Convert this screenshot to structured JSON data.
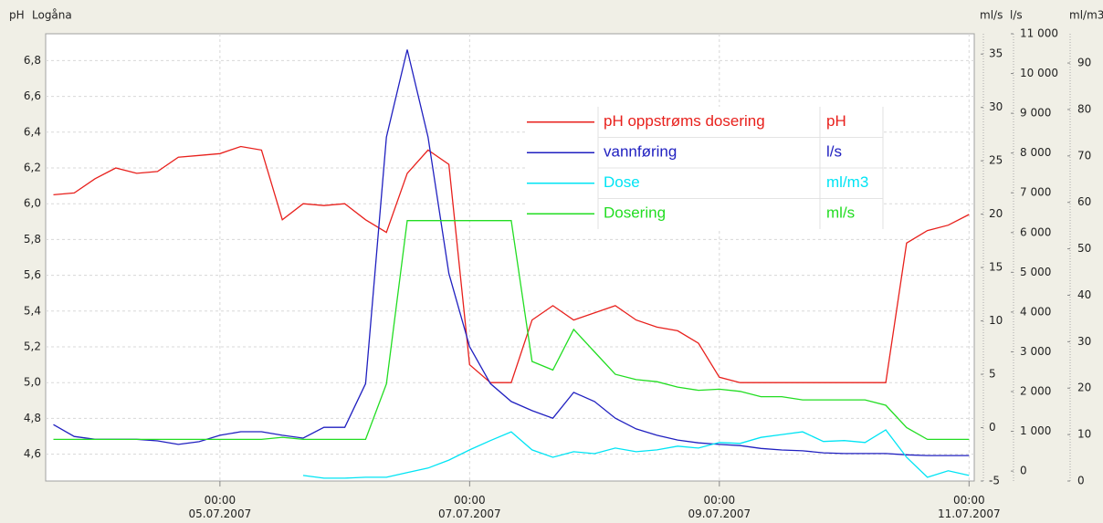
{
  "chart_data": {
    "type": "line",
    "title": "Logåna",
    "ylabel": "pH",
    "y2label": "ml/s",
    "y3label": "l/s",
    "y4label": "ml/m3",
    "grid": true,
    "x": [
      "03.07.2007 16:00",
      "03.07.2007 20:00",
      "04.07.2007 00:00",
      "04.07.2007 04:00",
      "04.07.2007 08:00",
      "04.07.2007 12:00",
      "04.07.2007 16:00",
      "04.07.2007 20:00",
      "05.07.2007 00:00",
      "05.07.2007 04:00",
      "05.07.2007 08:00",
      "05.07.2007 12:00",
      "05.07.2007 16:00",
      "05.07.2007 20:00",
      "06.07.2007 00:00",
      "06.07.2007 04:00",
      "06.07.2007 08:00",
      "06.07.2007 12:00",
      "06.07.2007 16:00",
      "06.07.2007 20:00",
      "07.07.2007 00:00",
      "07.07.2007 04:00",
      "07.07.2007 08:00",
      "07.07.2007 12:00",
      "07.07.2007 16:00",
      "07.07.2007 20:00",
      "08.07.2007 00:00",
      "08.07.2007 04:00",
      "08.07.2007 08:00",
      "08.07.2007 12:00",
      "08.07.2007 16:00",
      "08.07.2007 20:00",
      "09.07.2007 00:00",
      "09.07.2007 04:00",
      "09.07.2007 08:00",
      "09.07.2007 12:00",
      "09.07.2007 16:00",
      "09.07.2007 20:00",
      "10.07.2007 00:00",
      "10.07.2007 04:00",
      "10.07.2007 08:00",
      "10.07.2007 12:00",
      "10.07.2007 16:00",
      "10.07.2007 20:00",
      "11.07.2007 00:00"
    ],
    "xlim": [
      "03.07.2007 14:30",
      "11.07.2007 01:00"
    ],
    "xticks": [
      {
        "value": "05.07.2007 00:00",
        "label": "00:00\n05.07.2007"
      },
      {
        "value": "07.07.2007 00:00",
        "label": "00:00\n07.07.2007"
      },
      {
        "value": "09.07.2007 00:00",
        "label": "00:00\n09.07.2007"
      },
      {
        "value": "11.07.2007 00:00",
        "label": "00:00\n11.07.2007"
      }
    ],
    "ylim": [
      4.45,
      6.95
    ],
    "yticks": [
      {
        "value": 4.6,
        "label": "4,6"
      },
      {
        "value": 4.8,
        "label": "4,8"
      },
      {
        "value": 5.0,
        "label": "5,0"
      },
      {
        "value": 5.2,
        "label": "5,2"
      },
      {
        "value": 5.4,
        "label": "5,4"
      },
      {
        "value": 5.6,
        "label": "5,6"
      },
      {
        "value": 5.8,
        "label": "5,8"
      },
      {
        "value": 6.0,
        "label": "6,0"
      },
      {
        "value": 6.2,
        "label": "6,2"
      },
      {
        "value": 6.4,
        "label": "6,4"
      },
      {
        "value": 6.6,
        "label": "6,6"
      },
      {
        "value": 6.8,
        "label": "6,8"
      }
    ],
    "y2lim": [
      -5,
      36.9
    ],
    "y2ticks": [
      -5,
      0,
      5,
      10,
      15,
      20,
      25,
      30,
      35
    ],
    "y3lim": [
      -250,
      11000
    ],
    "y3ticks": [
      0,
      {
        "value": 1000,
        "label": "1 000"
      },
      {
        "value": 2000,
        "label": "2 000"
      },
      {
        "value": 3000,
        "label": "3 000"
      },
      {
        "value": 4000,
        "label": "4 000"
      },
      {
        "value": 5000,
        "label": "5 000"
      },
      {
        "value": 6000,
        "label": "6 000"
      },
      {
        "value": 7000,
        "label": "7 000"
      },
      {
        "value": 8000,
        "label": "8 000"
      },
      {
        "value": 9000,
        "label": "9 000"
      },
      {
        "value": 10000,
        "label": "10 000"
      },
      {
        "value": 11000,
        "label": "11 000"
      }
    ],
    "y4lim": [
      0,
      96.3
    ],
    "y4ticks": [
      0,
      10,
      20,
      30,
      40,
      50,
      60,
      70,
      80,
      90
    ],
    "series": [
      {
        "name": "pH oppstrøms dosering",
        "unit": "pH",
        "color": "#e8201c",
        "axis": "y",
        "values": [
          6.05,
          6.06,
          6.14,
          6.2,
          6.17,
          6.18,
          6.26,
          6.27,
          6.28,
          6.32,
          6.3,
          5.91,
          6.0,
          5.99,
          6.0,
          5.91,
          5.84,
          6.17,
          6.3,
          6.22,
          5.1,
          5.0,
          5.0,
          5.35,
          5.43,
          5.35,
          5.39,
          5.43,
          5.35,
          5.31,
          5.29,
          5.22,
          5.03,
          5.0,
          5.0,
          5.0,
          5.0,
          5.0,
          5.0,
          5.0,
          5.0,
          5.78,
          5.85,
          5.88,
          5.94
        ]
      },
      {
        "name": "vannføring",
        "unit": "l/s",
        "color": "#2020c0",
        "axis": "y3",
        "values": [
          1170,
          870,
          800,
          800,
          800,
          760,
          670,
          740,
          900,
          990,
          990,
          900,
          830,
          1100,
          1100,
          2200,
          8400,
          10600,
          8400,
          4970,
          3130,
          2200,
          1750,
          1520,
          1330,
          1980,
          1750,
          1330,
          1060,
          900,
          780,
          710,
          670,
          640,
          570,
          530,
          510,
          460,
          440,
          440,
          440,
          410,
          390,
          390,
          390
        ]
      },
      {
        "name": "Dose",
        "unit": "ml/m3",
        "color": "#00e4f4",
        "axis": "y4",
        "values": [
          null,
          null,
          null,
          null,
          null,
          null,
          null,
          null,
          null,
          null,
          null,
          null,
          1.2,
          0.6,
          0.6,
          0.8,
          0.8,
          1.8,
          2.8,
          4.5,
          6.7,
          8.7,
          10.6,
          6.7,
          5.1,
          6.3,
          5.9,
          7.1,
          6.3,
          6.7,
          7.5,
          7.1,
          8.3,
          8.1,
          9.4,
          10,
          10.6,
          8.5,
          8.7,
          8.3,
          11,
          5.1,
          0.8,
          2.2,
          1.2
        ]
      },
      {
        "name": "Dosering",
        "unit": "ml/s",
        "color": "#22dd22",
        "axis": "y2",
        "values": [
          -1.1,
          -1.1,
          -1.1,
          -1.1,
          -1.1,
          -1.1,
          -1.1,
          -1.1,
          -1.1,
          -1.1,
          -1.1,
          -0.9,
          -1.1,
          -1.1,
          -1.1,
          -1.1,
          4.1,
          19.4,
          19.4,
          19.4,
          19.4,
          19.4,
          19.4,
          6.2,
          5.4,
          9.2,
          7.1,
          5.0,
          4.5,
          4.3,
          3.8,
          3.5,
          3.6,
          3.4,
          2.9,
          2.9,
          2.6,
          2.6,
          2.6,
          2.6,
          2.1,
          0,
          -1.1,
          -1.1,
          -1.1
        ]
      }
    ]
  }
}
